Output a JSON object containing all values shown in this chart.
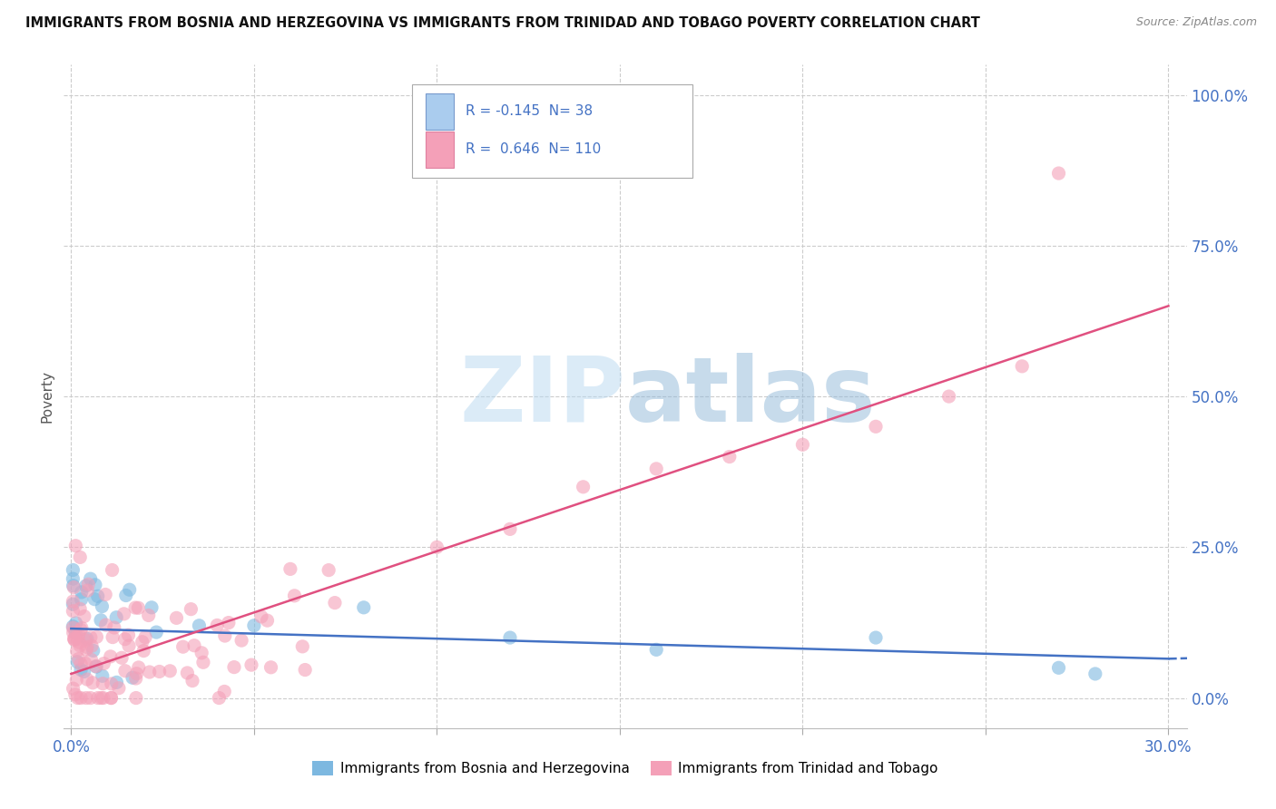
{
  "title": "IMMIGRANTS FROM BOSNIA AND HERZEGOVINA VS IMMIGRANTS FROM TRINIDAD AND TOBAGO POVERTY CORRELATION CHART",
  "source": "Source: ZipAtlas.com",
  "ylabel": "Poverty",
  "xlim": [
    -0.002,
    0.305
  ],
  "ylim": [
    -0.05,
    1.05
  ],
  "xtick_positions": [
    0.0,
    0.05,
    0.1,
    0.15,
    0.2,
    0.25,
    0.3
  ],
  "yticks_right": [
    0.0,
    0.25,
    0.5,
    0.75,
    1.0
  ],
  "series1_color": "#7db8e0",
  "series1_edge": "#7db8e0",
  "series2_color": "#f4a0b8",
  "series2_edge": "#f4a0b8",
  "series1_label": "Immigrants from Bosnia and Herzegovina",
  "series2_label": "Immigrants from Trinidad and Tobago",
  "R1": -0.145,
  "N1": 38,
  "R2": 0.646,
  "N2": 110,
  "line1_color": "#4472c4",
  "line2_color": "#e05080",
  "watermark1": "ZIP",
  "watermark2": "atlas",
  "background_color": "#ffffff",
  "grid_color": "#cccccc"
}
